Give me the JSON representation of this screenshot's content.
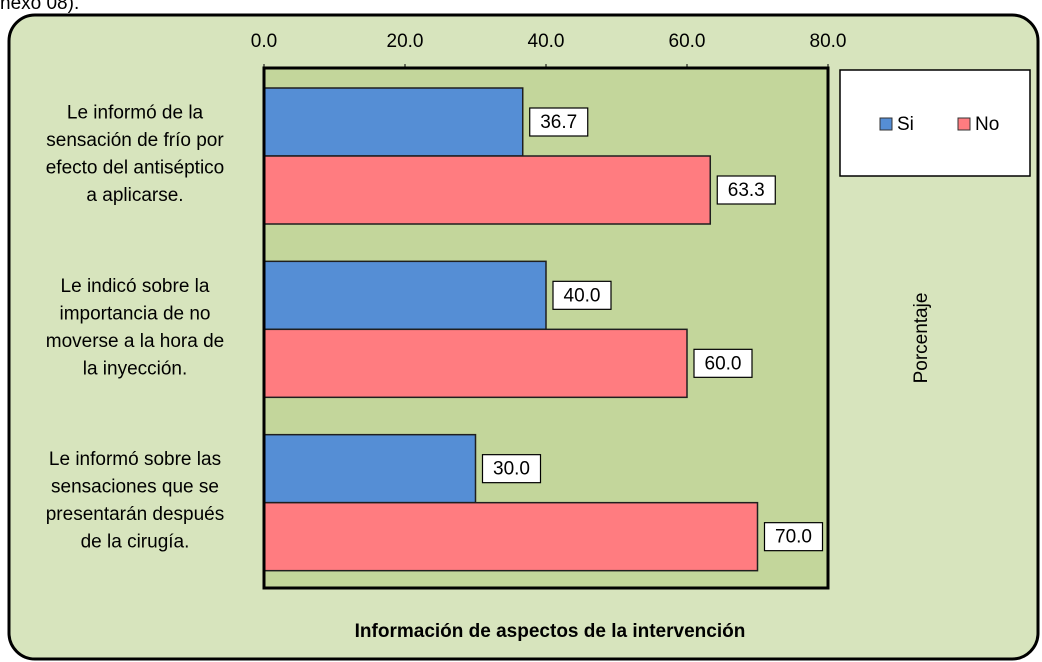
{
  "caption": "nexo 08).",
  "chart_data": {
    "type": "bar",
    "orientation": "horizontal",
    "title": "Información de aspectos de la intervención",
    "xlabel": "Porcentaje",
    "categories": [
      [
        "Le informó de la",
        "sensación de frío por",
        "efecto del antiséptico",
        "a aplicarse."
      ],
      [
        "Le indicó sobre la",
        "importancia de no",
        "moverse a la hora de",
        "la inyección."
      ],
      [
        "Le informó sobre las",
        "sensaciones que se",
        "presentarán después",
        "de la cirugía."
      ]
    ],
    "series": [
      {
        "name": "Si",
        "color": "#558ed5",
        "values": [
          36.7,
          40,
          30
        ],
        "value_labels": [
          "36.7",
          "40.0",
          "30.0"
        ]
      },
      {
        "name": "No",
        "color": "#ff7c80",
        "values": [
          63.3,
          60,
          70
        ],
        "value_labels": [
          "63.3",
          "60.0",
          "70.0"
        ]
      }
    ],
    "xlim": [
      0,
      80
    ],
    "xticks": [
      {
        "value": 0,
        "label": "0.0"
      },
      {
        "value": 20,
        "label": "20.0"
      },
      {
        "value": 40,
        "label": "40.0"
      },
      {
        "value": 60,
        "label": "60.0"
      },
      {
        "value": 80,
        "label": "80.0"
      }
    ],
    "grid": false,
    "legend": "right"
  }
}
